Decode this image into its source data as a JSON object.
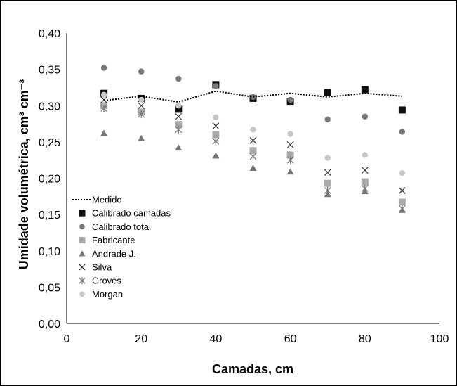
{
  "chart_data": {
    "type": "scatter",
    "title": "",
    "xlabel": "Camadas,  cm",
    "ylabel": "Umidade volumétrica, cm³ cm⁻³",
    "xlim": [
      0,
      100
    ],
    "ylim": [
      0,
      0.4
    ],
    "x_ticks": [
      "0",
      "20",
      "40",
      "60",
      "80",
      "100"
    ],
    "y_ticks": [
      "0,00",
      "0,05",
      "0,10",
      "0,15",
      "0,20",
      "0,25",
      "0,30",
      "0,35",
      "0,40"
    ],
    "grid": false,
    "legend_position": "left",
    "x": [
      10,
      20,
      30,
      40,
      50,
      60,
      70,
      80,
      90
    ],
    "series": [
      {
        "name": "Medido",
        "marker": "dotted-line",
        "color": "#000000",
        "values": [
          0.307,
          0.313,
          0.305,
          0.32,
          0.312,
          0.317,
          0.312,
          0.317,
          0.313
        ]
      },
      {
        "name": "Calibrado camadas",
        "marker": "square",
        "color": "#111111",
        "values": [
          0.317,
          0.31,
          0.295,
          0.329,
          0.31,
          0.305,
          0.318,
          0.322,
          0.294
        ]
      },
      {
        "name": "Calibrado total",
        "marker": "circle",
        "color": "#777777",
        "values": [
          0.352,
          0.347,
          0.337,
          0.327,
          0.312,
          0.308,
          0.281,
          0.285,
          0.264
        ]
      },
      {
        "name": "Fabricante",
        "marker": "square",
        "color": "#aaaaaa",
        "values": [
          0.3,
          0.291,
          0.274,
          0.26,
          0.238,
          0.232,
          0.193,
          0.195,
          0.167
        ]
      },
      {
        "name": "Andrade J.",
        "marker": "triangle",
        "color": "#777777",
        "values": [
          0.262,
          0.255,
          0.242,
          0.231,
          0.214,
          0.209,
          0.178,
          0.182,
          0.156
        ]
      },
      {
        "name": "Silva",
        "marker": "x",
        "color": "#333333",
        "values": [
          0.308,
          0.3,
          0.285,
          0.272,
          0.252,
          0.246,
          0.208,
          0.211,
          0.183
        ]
      },
      {
        "name": "Groves",
        "marker": "asterisk",
        "color": "#777777",
        "values": [
          0.296,
          0.288,
          0.267,
          0.251,
          0.23,
          0.225,
          0.183,
          0.186,
          0.158
        ]
      },
      {
        "name": "Morgan",
        "marker": "circle",
        "color": "#c8c8c8",
        "values": [
          0.315,
          0.308,
          0.3,
          0.284,
          0.267,
          0.261,
          0.228,
          0.232,
          0.207
        ]
      }
    ]
  }
}
